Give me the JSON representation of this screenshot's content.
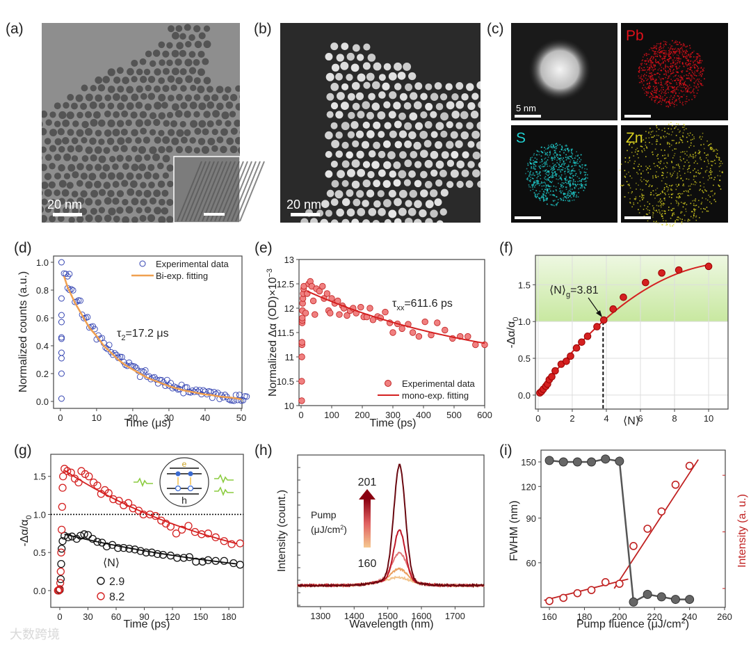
{
  "panels": {
    "a": {
      "label": "(a)",
      "scale_bar": "20 nm"
    },
    "b": {
      "label": "(b)",
      "scale_bar": "20 nm"
    },
    "c": {
      "label": "(c)",
      "scale_bar": "5 nm",
      "maps": [
        "Pb",
        "S",
        "Zn"
      ]
    },
    "d": {
      "label": "(d)"
    },
    "e": {
      "label": "(e)"
    },
    "f": {
      "label": "(f)"
    },
    "g": {
      "label": "(g)"
    },
    "h": {
      "label": "(h)"
    },
    "i": {
      "label": "(i)"
    }
  },
  "colors": {
    "pb": "#e0101a",
    "s": "#20d0d0",
    "zn": "#d8d020",
    "red": "#d42020",
    "blue": "#3040b0",
    "orange": "#f0a050",
    "green": "#8ccc40"
  },
  "watermark": "大数跨境",
  "chart_data": [
    {
      "id": "d",
      "type": "scatter",
      "xlabel": "Time (μs)",
      "ylabel": "Normalized counts (a.u.)",
      "xlim": [
        -1.9,
        50.2
      ],
      "ylim": [
        -0.05,
        1.045
      ],
      "xticks": [
        0,
        10,
        20,
        30,
        40,
        50
      ],
      "xtick_labels": [
        "0",
        "10",
        "20",
        "30",
        "40",
        "50"
      ],
      "yticks": [
        0,
        0.2,
        0.4,
        0.6,
        0.8,
        1.0
      ],
      "ytick_labels": [
        "0.0",
        "0.2",
        "0.4",
        "0.6",
        "0.8",
        "1.0"
      ],
      "legend": [
        "Experimental data",
        "Bi-exp. fitting"
      ],
      "annotation": {
        "main": "τ",
        "sub": "2",
        "rest": "=17.2 μs"
      },
      "rise_points": [
        [
          0.3,
          1.0
        ],
        [
          0.3,
          0.74
        ],
        [
          0.3,
          0.62
        ],
        [
          0.3,
          0.57
        ],
        [
          0.3,
          0.46
        ],
        [
          0.3,
          0.45
        ],
        [
          0.3,
          0.35
        ],
        [
          0.3,
          0.31
        ],
        [
          0.3,
          0.2
        ],
        [
          0.3,
          0.02
        ]
      ],
      "decay_t": [
        1,
        2,
        4,
        6,
        8,
        10,
        12,
        14,
        16,
        18,
        20,
        22,
        24,
        26,
        28,
        30,
        32,
        34,
        36,
        38,
        40,
        42,
        44,
        46,
        48,
        50
      ],
      "decay_y": [
        0.9,
        0.82,
        0.71,
        0.62,
        0.53,
        0.47,
        0.4,
        0.35,
        0.3,
        0.26,
        0.23,
        0.2,
        0.17,
        0.15,
        0.13,
        0.11,
        0.095,
        0.08,
        0.07,
        0.06,
        0.05,
        0.045,
        0.035,
        0.03,
        0.025,
        0.015
      ]
    },
    {
      "id": "e",
      "type": "scatter",
      "xlabel": "Time (ps)",
      "ylabel": "Normalized Δα (OD)×10",
      "ylabel_sup": "−3",
      "xlim": [
        -6.8,
        600
      ],
      "ylim": [
        10,
        13
      ],
      "xticks": [
        0,
        100,
        200,
        300,
        400,
        500,
        600
      ],
      "xtick_labels": [
        "0",
        "100",
        "200",
        "300",
        "400",
        "500",
        "600"
      ],
      "yticks": [
        10,
        10.5,
        11,
        11.5,
        12,
        12.5,
        13
      ],
      "ytick_labels": [
        "10",
        "10.5",
        "11",
        "11.5",
        "12",
        "12.5",
        "13"
      ],
      "legend": [
        "Experimental data",
        "mono-exp. fitting"
      ],
      "annotation": {
        "main": "τ",
        "sub": "xx",
        "rest": "=611.6 ps"
      },
      "fit": {
        "tau": 611.6,
        "a": 10.604,
        "b": 1.804,
        "t_start": 20
      },
      "points": [
        [
          2,
          10.1
        ],
        [
          2,
          10.5
        ],
        [
          2.5,
          11.0
        ],
        [
          3,
          11.25
        ],
        [
          3,
          11.3
        ],
        [
          3.5,
          11.7
        ],
        [
          4,
          11.75
        ],
        [
          4,
          11.8
        ],
        [
          4.5,
          11.95
        ],
        [
          5,
          12.1
        ],
        [
          6,
          12.2
        ],
        [
          7,
          12.3
        ],
        [
          8,
          12.4
        ],
        [
          9,
          12.45
        ],
        [
          15,
          11.9
        ],
        [
          20,
          12.3
        ],
        [
          25,
          12.5
        ],
        [
          30,
          12.55
        ],
        [
          35,
          12.45
        ],
        [
          40,
          12.15
        ],
        [
          45,
          11.87
        ],
        [
          50,
          12.4
        ],
        [
          60,
          12.35
        ],
        [
          70,
          12.45
        ],
        [
          75,
          12.2
        ],
        [
          85,
          12.3
        ],
        [
          90,
          11.95
        ],
        [
          95,
          11.9
        ],
        [
          100,
          12.2
        ],
        [
          110,
          12.1
        ],
        [
          120,
          12.15
        ],
        [
          125,
          11.87
        ],
        [
          135,
          12.05
        ],
        [
          140,
          12.0
        ],
        [
          150,
          11.85
        ],
        [
          160,
          11.95
        ],
        [
          170,
          12.0
        ],
        [
          180,
          11.9
        ],
        [
          195,
          12.02
        ],
        [
          205,
          11.82
        ],
        [
          215,
          11.82
        ],
        [
          225,
          12.0
        ],
        [
          235,
          11.76
        ],
        [
          250,
          11.83
        ],
        [
          260,
          11.8
        ],
        [
          275,
          11.92
        ],
        [
          290,
          11.7
        ],
        [
          300,
          11.5
        ],
        [
          315,
          11.68
        ],
        [
          330,
          11.58
        ],
        [
          350,
          11.67
        ],
        [
          365,
          11.5
        ],
        [
          385,
          11.42
        ],
        [
          405,
          11.72
        ],
        [
          425,
          11.45
        ],
        [
          445,
          11.7
        ],
        [
          470,
          11.55
        ],
        [
          495,
          11.38
        ],
        [
          520,
          11.42
        ],
        [
          545,
          11.42
        ],
        [
          570,
          11.25
        ],
        [
          600,
          11.25
        ]
      ]
    },
    {
      "id": "f",
      "type": "scatter",
      "xlabel": "⟨N⟩",
      "ylabel": "-Δα/α",
      "ylabel_sub": "0",
      "xlim": [
        -0.16,
        11.14
      ],
      "ylim": [
        -0.19,
        1.9
      ],
      "grid": true,
      "shaded_region_y": [
        1.0,
        1.9
      ],
      "xticks": [
        0,
        2,
        4,
        6,
        8,
        10
      ],
      "xtick_labels": [
        "0",
        "2",
        "4",
        "6",
        "8",
        "10"
      ],
      "yticks": [
        0,
        0.5,
        1.0,
        1.5
      ],
      "ytick_labels": [
        "0.0",
        "0.5",
        "1.0",
        "1.5"
      ],
      "annotation": {
        "main": "⟨N⟩",
        "sub": "g",
        "rest": "=3.81"
      },
      "threshold_N": 3.81,
      "fit": {
        "c0": 0.02,
        "c1": 0.31,
        "c2": -0.0135
      },
      "points": [
        [
          0.1,
          0.03
        ],
        [
          0.2,
          0.05
        ],
        [
          0.3,
          0.08
        ],
        [
          0.45,
          0.12
        ],
        [
          0.55,
          0.15
        ],
        [
          0.65,
          0.21
        ],
        [
          0.8,
          0.25
        ],
        [
          1.0,
          0.33
        ],
        [
          1.35,
          0.42
        ],
        [
          1.65,
          0.46
        ],
        [
          1.9,
          0.53
        ],
        [
          2.25,
          0.64
        ],
        [
          2.55,
          0.72
        ],
        [
          2.9,
          0.8
        ],
        [
          3.45,
          0.93
        ],
        [
          3.85,
          1.02
        ],
        [
          4.4,
          1.17
        ],
        [
          5.0,
          1.33
        ],
        [
          6.3,
          1.53
        ],
        [
          7.25,
          1.66
        ],
        [
          8.25,
          1.7
        ],
        [
          10,
          1.75
        ]
      ]
    },
    {
      "id": "g",
      "type": "scatter",
      "xlabel": "Time (ps)",
      "ylabel": "-Δα/α",
      "ylabel_sub": "0",
      "xlim": [
        -9.6,
        195.5
      ],
      "ylim": [
        -0.22,
        1.79
      ],
      "xticks": [
        0,
        30,
        60,
        90,
        120,
        150,
        180
      ],
      "xtick_labels": [
        "0",
        "30",
        "60",
        "90",
        "120",
        "150",
        "180"
      ],
      "yticks": [
        0,
        0.5,
        1.0,
        1.5
      ],
      "ytick_labels": [
        "0.0",
        "0.5",
        "1.0",
        "1.5"
      ],
      "reference_line_y": 1.0,
      "legend_title": "⟨N⟩",
      "inset_labels": [
        "e",
        "h"
      ],
      "series": [
        {
          "name": "2.9",
          "color": "#111111",
          "fit": {
            "amp": 0.74,
            "tau": 245,
            "t0": 5
          },
          "points": [
            [
              -1,
              0
            ],
            [
              0,
              0.01
            ],
            [
              1,
              0.15
            ],
            [
              1.5,
              0.35
            ],
            [
              2,
              0.55
            ],
            [
              3,
              0.65
            ],
            [
              5,
              0.72
            ],
            [
              9,
              0.7
            ],
            [
              13,
              0.71
            ],
            [
              18,
              0.68
            ],
            [
              22,
              0.72
            ],
            [
              26,
              0.74
            ],
            [
              30,
              0.73
            ],
            [
              35,
              0.68
            ],
            [
              40,
              0.64
            ],
            [
              45,
              0.63
            ],
            [
              50,
              0.58
            ],
            [
              56,
              0.6
            ],
            [
              62,
              0.56
            ],
            [
              68,
              0.56
            ],
            [
              74,
              0.55
            ],
            [
              80,
              0.54
            ],
            [
              86,
              0.52
            ],
            [
              92,
              0.5
            ],
            [
              98,
              0.5
            ],
            [
              104,
              0.48
            ],
            [
              110,
              0.47
            ],
            [
              118,
              0.46
            ],
            [
              125,
              0.43
            ],
            [
              132,
              0.43
            ],
            [
              138,
              0.44
            ],
            [
              145,
              0.38
            ],
            [
              152,
              0.38
            ],
            [
              158,
              0.4
            ],
            [
              166,
              0.39
            ],
            [
              175,
              0.39
            ],
            [
              185,
              0.36
            ],
            [
              192,
              0.34
            ]
          ]
        },
        {
          "name": "8.2",
          "color": "#d42020",
          "fit": {
            "amp": 1.58,
            "tau": 195,
            "t0": 5
          },
          "points": [
            [
              -2,
              0
            ],
            [
              -1,
              0
            ],
            [
              0,
              0.02
            ],
            [
              0.5,
              0.1
            ],
            [
              1,
              0.25
            ],
            [
              1.5,
              0.5
            ],
            [
              2,
              0.8
            ],
            [
              2.5,
              1.1
            ],
            [
              3,
              1.35
            ],
            [
              3.5,
              1.5
            ],
            [
              5,
              1.6
            ],
            [
              8,
              1.57
            ],
            [
              12,
              1.55
            ],
            [
              16,
              1.47
            ],
            [
              20,
              1.42
            ],
            [
              23,
              1.57
            ],
            [
              27,
              1.53
            ],
            [
              31,
              1.5
            ],
            [
              36,
              1.42
            ],
            [
              40,
              1.38
            ],
            [
              44,
              1.27
            ],
            [
              48,
              1.32
            ],
            [
              52,
              1.28
            ],
            [
              57,
              1.2
            ],
            [
              63,
              1.18
            ],
            [
              68,
              1.12
            ],
            [
              73,
              1.15
            ],
            [
              78,
              1.08
            ],
            [
              84,
              1.05
            ],
            [
              89,
              1.0
            ],
            [
              96,
              1.0
            ],
            [
              102,
              0.98
            ],
            [
              108,
              0.92
            ],
            [
              113,
              0.88
            ],
            [
              118,
              0.84
            ],
            [
              124,
              0.75
            ],
            [
              130,
              0.8
            ],
            [
              137,
              0.85
            ],
            [
              144,
              0.77
            ],
            [
              151,
              0.74
            ],
            [
              158,
              0.75
            ],
            [
              166,
              0.7
            ],
            [
              175,
              0.65
            ],
            [
              183,
              0.61
            ],
            [
              192,
              0.62
            ]
          ]
        }
      ]
    },
    {
      "id": "h",
      "type": "line",
      "xlabel": "Wavelength (nm)",
      "ylabel": "Intensity (count.)",
      "xlim": [
        1232,
        1786
      ],
      "ylim": [
        0,
        1
      ],
      "xticks": [
        1300,
        1400,
        1500,
        1600,
        1700
      ],
      "xtick_labels": [
        "1300",
        "1400",
        "1500",
        "1600",
        "1700"
      ],
      "colorbar": {
        "title": "Pump",
        "unit": "(μJ/cm",
        "unit_sup": "2",
        "unit_end": ")",
        "max_label": "201",
        "min_label": "160"
      },
      "peak_center_nm": 1535,
      "baseline": 0.14,
      "series": [
        {
          "peak": 0.19,
          "color": "#f2c48e"
        },
        {
          "peak": 0.245,
          "color": "#eaa060"
        },
        {
          "peak": 0.35,
          "color": "#e07878"
        },
        {
          "peak": 0.5,
          "color": "#c01828"
        },
        {
          "peak": 0.93,
          "color": "#6a0810"
        }
      ]
    },
    {
      "id": "i",
      "type": "line",
      "xlabel": "Pump fluence (μJ/cm",
      "xlabel_sup": "2",
      "xlabel_end": ")",
      "ylabel": "FWHM (nm)",
      "ylabel_right": "Intensity (a. u.)",
      "xlim": [
        155.2,
        260.4
      ],
      "ylim": [
        40,
        167
      ],
      "yscale": "log",
      "xticks": [
        160,
        180,
        200,
        220,
        240,
        260
      ],
      "xtick_labels": [
        "160",
        "180",
        "200",
        "220",
        "240",
        "260"
      ],
      "yticks": [
        60,
        90,
        120,
        150
      ],
      "ytick_labels": [
        "60",
        "90",
        "120",
        "150"
      ],
      "x": [
        160,
        168,
        176,
        184,
        192,
        200,
        208,
        216,
        224,
        232,
        240
      ],
      "fwhm": [
        152,
        150,
        150,
        150,
        154,
        151,
        42,
        45,
        44,
        43,
        43
      ],
      "intensity_norm": [
        0.04,
        0.06,
        0.09,
        0.11,
        0.16,
        0.15,
        0.39,
        0.5,
        0.61,
        0.78,
        0.9
      ],
      "fit_low": [
        [
          157,
          0.045
        ],
        [
          205,
          0.18
        ]
      ],
      "fit_high": [
        [
          197,
          0.12
        ],
        [
          245,
          0.94
        ]
      ]
    }
  ]
}
